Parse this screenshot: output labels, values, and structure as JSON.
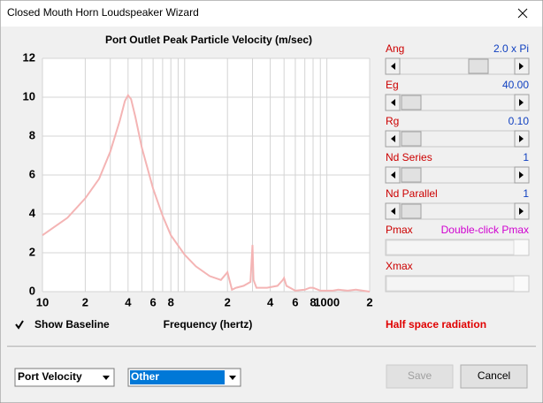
{
  "window": {
    "title": "Closed Mouth Horn Loudspeaker Wizard"
  },
  "chart_data": {
    "type": "line",
    "title": "Port Outlet Peak Particle Velocity (m/sec)",
    "xlabel": "Frequency (hertz)",
    "xscale": "log",
    "xlim": [
      10,
      2000
    ],
    "xticks": [
      10,
      {
        "value": 20,
        "label": "2"
      },
      {
        "value": 40,
        "label": "4"
      },
      {
        "value": 60,
        "label": "6"
      },
      {
        "value": 80,
        "label": "8"
      },
      {
        "value": 200,
        "label": "2"
      },
      {
        "value": 400,
        "label": "4"
      },
      {
        "value": 600,
        "label": "6"
      },
      {
        "value": 800,
        "label": "8"
      },
      1000,
      {
        "value": 2000,
        "label": "2"
      }
    ],
    "xgrid": [
      10,
      20,
      30,
      40,
      50,
      60,
      70,
      80,
      90,
      100,
      200,
      300,
      400,
      500,
      600,
      700,
      800,
      900,
      1000,
      2000
    ],
    "ylim": [
      0,
      12
    ],
    "yticks": [
      0,
      2,
      4,
      6,
      8,
      10,
      12
    ],
    "grid": true,
    "x": [
      10,
      15,
      20,
      25,
      30,
      35,
      38,
      40,
      42,
      45,
      50,
      60,
      70,
      80,
      100,
      120,
      150,
      180,
      195,
      200,
      205,
      215,
      230,
      260,
      290,
      300,
      305,
      320,
      380,
      450,
      490,
      500,
      520,
      600,
      700,
      760,
      800,
      900,
      1100,
      1200,
      1400,
      1600,
      2000
    ],
    "series": [
      {
        "color": "#f4b4b4",
        "values": [
          2.9,
          3.8,
          4.8,
          5.8,
          7.2,
          8.8,
          9.8,
          10.1,
          9.9,
          9.0,
          7.4,
          5.3,
          3.9,
          2.9,
          1.9,
          1.3,
          0.8,
          0.6,
          0.9,
          1.0,
          0.7,
          0.1,
          0.2,
          0.3,
          0.5,
          2.4,
          0.6,
          0.2,
          0.2,
          0.3,
          0.6,
          0.7,
          0.3,
          0.05,
          0.1,
          0.2,
          0.2,
          0.05,
          0.05,
          0.1,
          0.05,
          0.1,
          0
        ]
      }
    ]
  },
  "controls": [
    {
      "label": "Ang",
      "value": "2.0 x Pi",
      "enabled": true
    },
    {
      "label": "Eg",
      "value": "40.00",
      "enabled": true
    },
    {
      "label": "Rg",
      "value": "0.10",
      "enabled": true
    },
    {
      "label": "Nd  Series",
      "value": "1",
      "enabled": true
    },
    {
      "label": "Nd  Parallel",
      "value": "1",
      "enabled": true
    },
    {
      "label": "Pmax",
      "value": "Double-click Pmax",
      "enabled": false
    },
    {
      "label": "Xmax",
      "enabled": false
    }
  ],
  "show_baseline": {
    "label": "Show Baseline",
    "checked": true
  },
  "status": "Half space radiation",
  "dropdowns": [
    "Port Velocity",
    "Other"
  ],
  "buttons": [
    {
      "label": "Save",
      "enabled": false
    },
    {
      "label": "Cancel",
      "enabled": true
    }
  ]
}
